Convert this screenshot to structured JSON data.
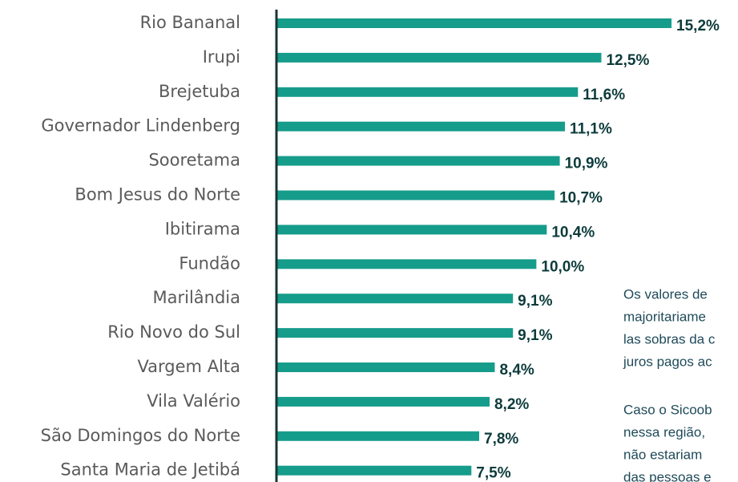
{
  "chart_data": {
    "type": "bar",
    "orientation": "horizontal",
    "categories": [
      "Rio Bananal",
      "Irupi",
      "Brejetuba",
      "Governador Lindenberg",
      "Sooretama",
      "Bom Jesus do Norte",
      "Ibitirama",
      "Fundão",
      "Marilândia",
      "Rio Novo do Sul",
      "Vargem Alta",
      "Vila Valério",
      "São Domingos do Norte",
      "Santa Maria de Jetibá"
    ],
    "values": [
      15.2,
      12.5,
      11.6,
      11.1,
      10.9,
      10.7,
      10.4,
      10.0,
      9.1,
      9.1,
      8.4,
      8.2,
      7.8,
      7.5
    ],
    "value_labels": [
      "15,2%",
      "12,5%",
      "11,6%",
      "11,1%",
      "10,9%",
      "10,7%",
      "10,4%",
      "10,0%",
      "9,1%",
      "9,1%",
      "8,4%",
      "8,2%",
      "7,8%",
      "7,5%"
    ],
    "color": "#169c8a",
    "xlim": [
      0,
      16
    ],
    "annotation": [
      "Os valores de",
      "majoritariame",
      "las sobras da c",
      "juros pagos ac",
      "Caso o Sicoob",
      "nessa região,",
      "não estariam",
      "das pessoas e"
    ]
  }
}
